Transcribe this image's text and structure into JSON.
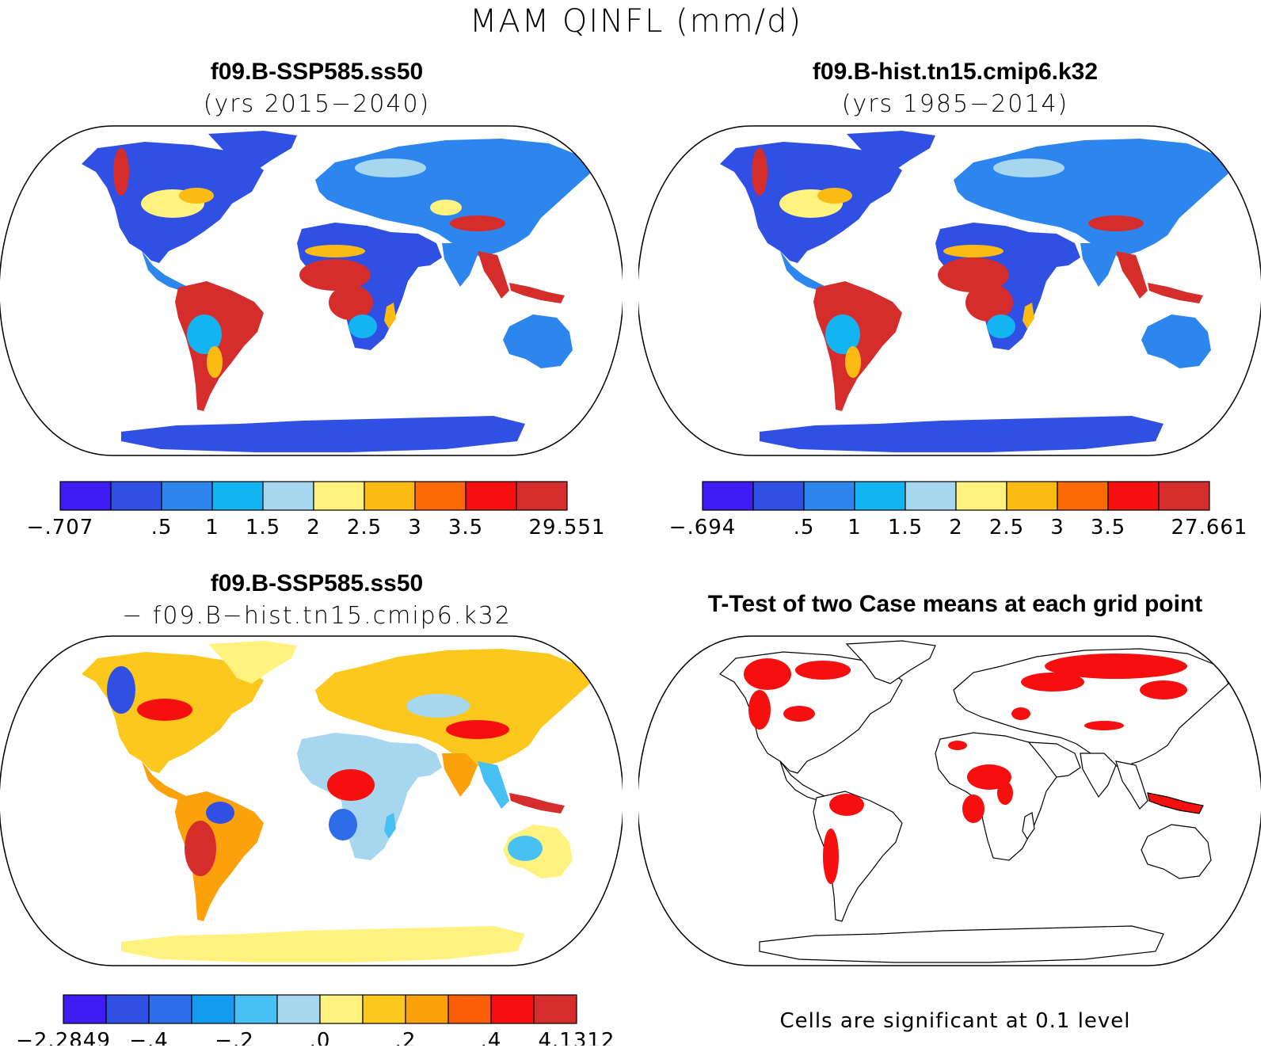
{
  "main_title": "MAM QINFL (mm/d)",
  "panels": [
    {
      "id": "p1",
      "title": "f09.B-SSP585.ss50",
      "subtitle": "(yrs 2015−2040)",
      "colorbar": {
        "colors": [
          "#3f1df2",
          "#2f50e2",
          "#2d86ee",
          "#12b5f2",
          "#a7d7ef",
          "#fff27f",
          "#fcbb13",
          "#fb6a05",
          "#f50f0e",
          "#d52c2c"
        ],
        "labels": [
          "−.707",
          ".5",
          "1",
          "1.5",
          "2",
          "2.5",
          "3",
          "3.5",
          "29.551"
        ],
        "label_bounds": [
          0,
          2,
          3,
          4,
          5,
          6,
          7,
          8,
          10
        ]
      }
    },
    {
      "id": "p2",
      "title": "f09.B-hist.tn15.cmip6.k32",
      "subtitle": "(yrs 1985−2014)",
      "colorbar": {
        "colors": [
          "#3f1df2",
          "#2f50e2",
          "#2d86ee",
          "#12b5f2",
          "#a7d7ef",
          "#fff27f",
          "#fcbb13",
          "#fb6a05",
          "#f50f0e",
          "#d52c2c"
        ],
        "labels": [
          "−.694",
          ".5",
          "1",
          "1.5",
          "2",
          "2.5",
          "3",
          "3.5",
          "27.661"
        ],
        "label_bounds": [
          0,
          2,
          3,
          4,
          5,
          6,
          7,
          8,
          10
        ]
      }
    },
    {
      "id": "p3",
      "title": "f09.B-SSP585.ss50",
      "subtitle": "− f09.B−hist.tn15.cmip6.k32",
      "colorbar": {
        "colors": [
          "#3f1df2",
          "#2f50e2",
          "#2d6ee8",
          "#139bf0",
          "#48c0f4",
          "#a7d7ef",
          "#fff27f",
          "#fcc81e",
          "#fba10c",
          "#fb5f08",
          "#f50f0e",
          "#d52c2c"
        ],
        "labels": [
          "−2.2849",
          "−.4",
          "−.2",
          ".0",
          ".2",
          ".4",
          "4.1312"
        ],
        "label_bounds": [
          0,
          2,
          4,
          6,
          8,
          10,
          12
        ]
      }
    },
    {
      "id": "p4",
      "title": "T-Test of two Case means at each grid point",
      "note": "Cells are significant at 0.1 level"
    }
  ],
  "colors": {
    "land_outline": "#000000",
    "significant": "#f50f0e"
  }
}
